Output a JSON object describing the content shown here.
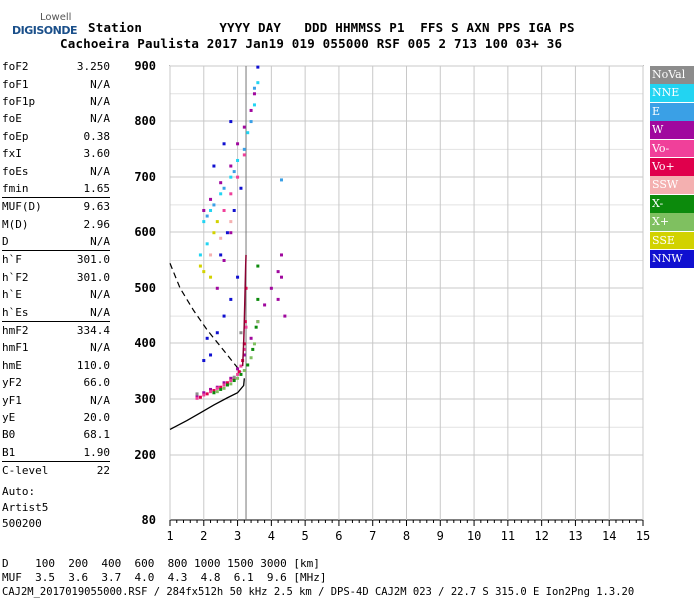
{
  "logo": {
    "line1": "Lowell",
    "line2": "DIGISONDE"
  },
  "header": {
    "line1": "Station          YYYY DAY   DDD HHMMSS P1  FFS S AXN PPS IGA PS",
    "line2": "Cachoeira Paulista 2017 Jan19 019 055000 RSF 005 2 713 100 03+ 36"
  },
  "parameters": [
    {
      "label": "foF2",
      "value": "3.250"
    },
    {
      "label": "foF1",
      "value": "N/A"
    },
    {
      "label": "foF1p",
      "value": "N/A"
    },
    {
      "label": "foE",
      "value": "N/A"
    },
    {
      "label": "foEp",
      "value": "0.38"
    },
    {
      "label": "fxI",
      "value": "3.60"
    },
    {
      "label": "foEs",
      "value": "N/A"
    },
    {
      "label": "fmin",
      "value": "1.65"
    },
    {
      "label": "MUF(D)",
      "value": "9.63"
    },
    {
      "label": "M(D)",
      "value": "2.96"
    },
    {
      "label": "D",
      "value": "N/A"
    },
    {
      "label": "h`F",
      "value": "301.0"
    },
    {
      "label": "h`F2",
      "value": "301.0"
    },
    {
      "label": "h`E",
      "value": "N/A"
    },
    {
      "label": "h`Es",
      "value": "N/A"
    },
    {
      "label": "hmF2",
      "value": "334.4"
    },
    {
      "label": "hmF1",
      "value": "N/A"
    },
    {
      "label": "hmE",
      "value": "110.0"
    },
    {
      "label": "yF2",
      "value": "66.0"
    },
    {
      "label": "yF1",
      "value": "N/A"
    },
    {
      "label": "yE",
      "value": "20.0"
    },
    {
      "label": "B0",
      "value": "68.1"
    },
    {
      "label": "B1",
      "value": "1.90"
    },
    {
      "label": "C-level",
      "value": "22"
    }
  ],
  "auto": {
    "line1": "Auto:",
    "line2": "Artist5",
    "line3": "500200"
  },
  "legend": [
    {
      "label": "NoVal",
      "color": "#8c8c8c"
    },
    {
      "label": "NNE",
      "color": "#22d4f2"
    },
    {
      "label": "E",
      "color": "#3aa0e6"
    },
    {
      "label": "W",
      "color": "#a0089e"
    },
    {
      "label": "Vo-",
      "color": "#f0409a"
    },
    {
      "label": "Vo+",
      "color": "#e0004c"
    },
    {
      "label": "SSW",
      "color": "#f4b0b0"
    },
    {
      "label": "X-",
      "color": "#0c8a0c"
    },
    {
      "label": "X+",
      "color": "#7fc060"
    },
    {
      "label": "SSE",
      "color": "#d2d200"
    },
    {
      "label": "NNW",
      "color": "#1010d0"
    }
  ],
  "footer": {
    "line1": "D    100  200  400  600  800 1000 1500 3000 [km]",
    "line2": "MUF  3.5  3.6  3.7  4.0  4.3  4.8  6.1  9.6 [MHz]",
    "line3": "CAJ2M_2017019055000.RSF / 284fx512h 50 kHz 2.5 km / DPS-4D CAJ2M 023 / 22.7 S 315.0 E Ion2Png 1.3.20"
  },
  "chart_data": {
    "type": "scatter",
    "title": "",
    "xlabel": "",
    "ylabel": "",
    "x_unit": "MHz",
    "y_unit": "km",
    "xlim": [
      1,
      15
    ],
    "ylim": [
      80,
      900
    ],
    "x_ticks": [
      1,
      2,
      3,
      4,
      5,
      6,
      7,
      8,
      9,
      10,
      11,
      12,
      13,
      14,
      15
    ],
    "y_ticks": [
      80,
      200,
      300,
      400,
      500,
      600,
      700,
      800,
      900
    ],
    "grid": true,
    "legend_placement": "right",
    "foF2_marker": 3.25,
    "series": [
      {
        "legend": "W",
        "points": [
          [
            1.8,
            305
          ],
          [
            2.0,
            312
          ],
          [
            2.2,
            318
          ],
          [
            2.4,
            322
          ],
          [
            2.6,
            330
          ],
          [
            2.8,
            338
          ],
          [
            3.0,
            355
          ],
          [
            3.2,
            380
          ],
          [
            3.4,
            410
          ],
          [
            3.6,
            440
          ],
          [
            3.8,
            470
          ],
          [
            4.0,
            500
          ],
          [
            4.2,
            530
          ],
          [
            4.3,
            560
          ],
          [
            2.0,
            640
          ],
          [
            2.2,
            660
          ],
          [
            2.5,
            690
          ],
          [
            2.8,
            720
          ],
          [
            3.0,
            760
          ],
          [
            3.2,
            790
          ],
          [
            3.4,
            820
          ],
          [
            3.5,
            850
          ],
          [
            2.4,
            500
          ],
          [
            2.6,
            550
          ],
          [
            2.8,
            600
          ],
          [
            4.3,
            520
          ],
          [
            4.2,
            480
          ],
          [
            4.4,
            450
          ]
        ]
      },
      {
        "legend": "Vo-",
        "points": [
          [
            1.8,
            302
          ],
          [
            2.0,
            308
          ],
          [
            2.2,
            314
          ],
          [
            2.4,
            320
          ],
          [
            2.6,
            326
          ],
          [
            2.8,
            334
          ],
          [
            3.0,
            345
          ],
          [
            3.1,
            360
          ],
          [
            3.2,
            390
          ],
          [
            3.25,
            430
          ],
          [
            2.6,
            640
          ],
          [
            2.8,
            670
          ],
          [
            3.0,
            700
          ],
          [
            3.2,
            740
          ]
        ]
      },
      {
        "legend": "Vo+",
        "points": [
          [
            1.9,
            304
          ],
          [
            2.1,
            310
          ],
          [
            2.3,
            316
          ],
          [
            2.5,
            322
          ],
          [
            2.7,
            330
          ],
          [
            2.9,
            338
          ],
          [
            3.05,
            350
          ],
          [
            3.15,
            370
          ],
          [
            3.2,
            400
          ],
          [
            3.23,
            440
          ],
          [
            3.25,
            500
          ]
        ]
      },
      {
        "legend": "X-",
        "points": [
          [
            2.3,
            312
          ],
          [
            2.5,
            318
          ],
          [
            2.7,
            326
          ],
          [
            2.9,
            334
          ],
          [
            3.1,
            345
          ],
          [
            3.3,
            362
          ],
          [
            3.45,
            390
          ],
          [
            3.55,
            430
          ],
          [
            3.6,
            480
          ],
          [
            3.6,
            540
          ]
        ]
      },
      {
        "legend": "X+",
        "points": [
          [
            2.4,
            314
          ],
          [
            2.6,
            320
          ],
          [
            2.8,
            328
          ],
          [
            3.0,
            338
          ],
          [
            3.2,
            352
          ],
          [
            3.4,
            375
          ],
          [
            3.5,
            400
          ],
          [
            3.6,
            440
          ]
        ]
      },
      {
        "legend": "NNE",
        "points": [
          [
            2.0,
            620
          ],
          [
            2.2,
            640
          ],
          [
            2.5,
            670
          ],
          [
            2.8,
            700
          ],
          [
            3.0,
            730
          ],
          [
            3.3,
            780
          ],
          [
            3.5,
            830
          ],
          [
            3.6,
            870
          ],
          [
            1.9,
            560
          ],
          [
            2.1,
            580
          ]
        ]
      },
      {
        "legend": "E",
        "points": [
          [
            2.1,
            630
          ],
          [
            2.3,
            650
          ],
          [
            2.6,
            680
          ],
          [
            2.9,
            710
          ],
          [
            3.2,
            750
          ],
          [
            3.4,
            800
          ],
          [
            3.5,
            860
          ],
          [
            4.3,
            695
          ]
        ]
      },
      {
        "legend": "NNW",
        "points": [
          [
            2.2,
            380
          ],
          [
            2.4,
            420
          ],
          [
            2.6,
            450
          ],
          [
            2.8,
            480
          ],
          [
            3.0,
            520
          ],
          [
            2.5,
            560
          ],
          [
            2.7,
            600
          ],
          [
            2.9,
            640
          ],
          [
            3.1,
            680
          ],
          [
            2.3,
            720
          ],
          [
            2.6,
            760
          ],
          [
            2.8,
            800
          ],
          [
            3.6,
            898
          ],
          [
            2.0,
            370
          ],
          [
            2.1,
            410
          ]
        ]
      },
      {
        "legend": "SSE",
        "points": [
          [
            1.9,
            540
          ],
          [
            2.0,
            530
          ],
          [
            2.2,
            520
          ],
          [
            2.3,
            600
          ],
          [
            2.4,
            620
          ]
        ]
      },
      {
        "legend": "SSW",
        "points": [
          [
            2.2,
            560
          ],
          [
            2.5,
            590
          ],
          [
            2.8,
            620
          ]
        ]
      },
      {
        "legend": "NoVal",
        "points": [
          [
            1.8,
            310
          ],
          [
            2.9,
            340
          ],
          [
            3.1,
            420
          ]
        ]
      }
    ],
    "profile_curve": [
      [
        3.2,
        338
      ],
      [
        3.18,
        325
      ],
      [
        3.0,
        312
      ],
      [
        2.7,
        303
      ],
      [
        2.3,
        290
      ],
      [
        1.9,
        276
      ],
      [
        1.5,
        262
      ],
      [
        1.0,
        246
      ]
    ],
    "dashed_curve": [
      [
        1.0,
        545
      ],
      [
        1.3,
        500
      ],
      [
        1.7,
        460
      ],
      [
        2.1,
        425
      ],
      [
        2.5,
        395
      ],
      [
        2.8,
        372
      ],
      [
        3.0,
        357
      ],
      [
        3.1,
        350
      ]
    ],
    "trace_line": [
      [
        3.15,
        360
      ],
      [
        3.18,
        400
      ],
      [
        3.2,
        440
      ],
      [
        3.22,
        490
      ],
      [
        3.24,
        540
      ],
      [
        3.25,
        560
      ]
    ]
  }
}
